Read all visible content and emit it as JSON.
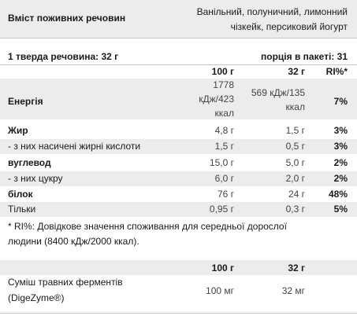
{
  "header": {
    "title": "Вміст поживних речовин",
    "flavors_line1": "Ванільний, полуничний, лимонний",
    "flavors_line2": "чізкейк, персиковий йогурт"
  },
  "serving": {
    "solids": "1 тверда речовина: 32 г",
    "per_pack": "порція в пакеті: 31"
  },
  "columns": {
    "col100": "100 г",
    "col32": "32 г",
    "ri": "RI%*"
  },
  "rows": [
    {
      "label": "Енергія",
      "v100_line1": "1778",
      "v100_line2": "кДж/423",
      "v100_line3": "ккал",
      "v32_line1": "569 кДж/135",
      "v32_line2": "ккал",
      "ri": "7%"
    },
    {
      "label": "Жир",
      "v100": "4,8 г",
      "v32": "1,5 г",
      "ri": "3%"
    },
    {
      "label": "- з них насичені жирні кислоти",
      "v100": "1,5 г",
      "v32": "0,5 г",
      "ri": "3%"
    },
    {
      "label": "вуглевод",
      "v100": "15,0 г",
      "v32": "5,0 г",
      "ri": "2%"
    },
    {
      "label": "- з них цукру",
      "v100": "6,0 г",
      "v32": "2,0 г",
      "ri": "2%"
    },
    {
      "label": "білок",
      "v100": "76 г",
      "v32": "24 г",
      "ri": "48%"
    },
    {
      "label": "Тільки",
      "v100": "0,95 г",
      "v32": "0,3 г",
      "ri": "5%"
    }
  ],
  "footnote": {
    "line1": "* RI%: Довідкове значення споживання для середньої дорослої",
    "line2": "людини (8400 кДж/2000 ккал)."
  },
  "enzymes": {
    "col100": "100 г",
    "col32": "32 г",
    "label_line1": "Суміш травних ферментів",
    "label_line2": "(DigeZyme®)",
    "v100": "100 мг",
    "v32": "32 мг"
  }
}
